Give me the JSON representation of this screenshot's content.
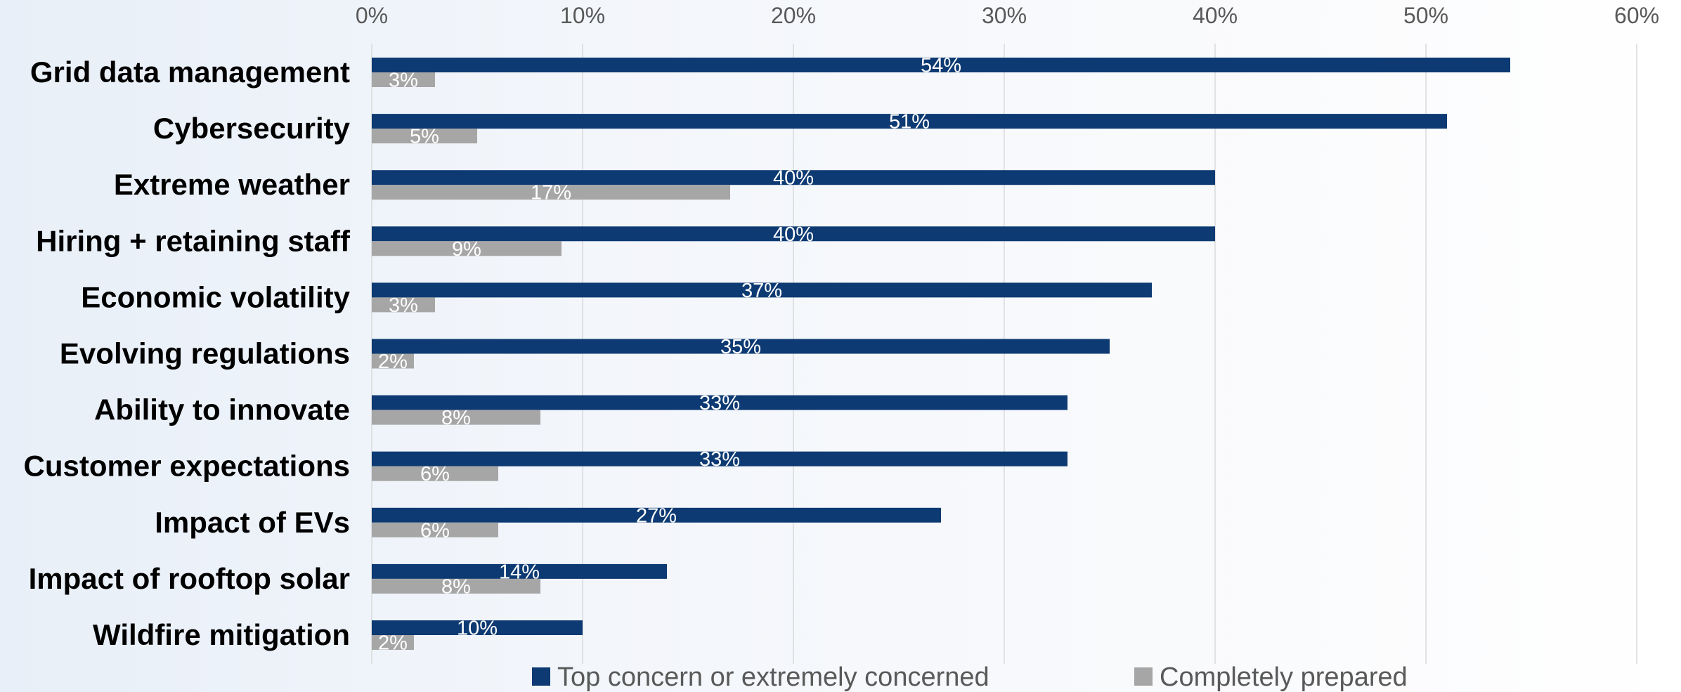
{
  "chart_data": {
    "type": "bar",
    "orientation": "horizontal",
    "categories": [
      "Grid data management",
      "Cybersecurity",
      "Extreme weather",
      "Hiring + retaining staff",
      "Economic volatility",
      "Evolving regulations",
      "Ability to innovate",
      "Customer expectations",
      "Impact of EVs",
      "Impact of rooftop solar",
      "Wildfire mitigation"
    ],
    "series": [
      {
        "name": "Top concern or extremely concerned",
        "color": "#0d3a72",
        "values": [
          54,
          51,
          40,
          40,
          37,
          35,
          33,
          33,
          27,
          14,
          10
        ],
        "labels": [
          "54%",
          "51%",
          "40%",
          "40%",
          "37%",
          "35%",
          "33%",
          "33%",
          "27%",
          "14%",
          "10%"
        ]
      },
      {
        "name": "Completely prepared",
        "color": "#a6a6a6",
        "values": [
          3,
          5,
          17,
          9,
          3,
          2,
          8,
          6,
          6,
          8,
          2
        ],
        "labels": [
          "3%",
          "5%",
          "17%",
          "9%",
          "3%",
          "2%",
          "8%",
          "6%",
          "6%",
          "8%",
          "2%"
        ]
      }
    ],
    "xlim": [
      0,
      60
    ],
    "xticks": [
      "0%",
      "10%",
      "20%",
      "30%",
      "40%",
      "50%",
      "60%"
    ],
    "grid": true,
    "axis_position": "top",
    "legend_position": "bottom"
  }
}
